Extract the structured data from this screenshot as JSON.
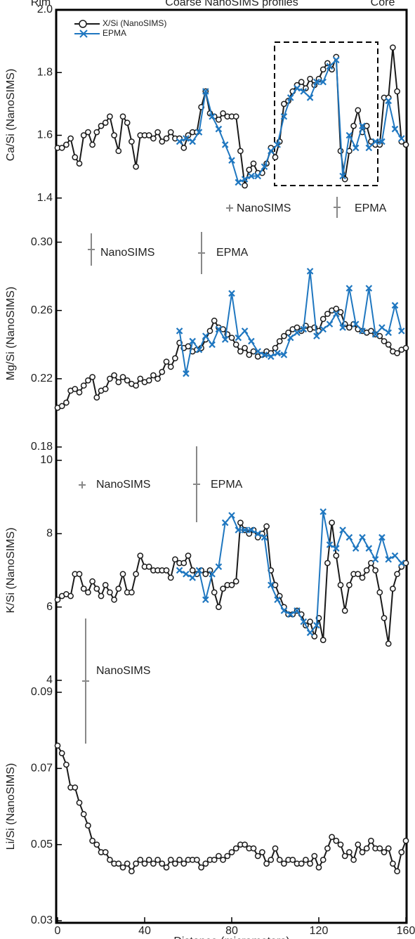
{
  "chart_data": [
    {
      "type": "line",
      "top_labels": [
        "Rim",
        "Coarse NanoSIMS profiles",
        "Core"
      ],
      "ylabel": "Ca/Si (NanoSIMS)",
      "xlim": [
        0,
        160
      ],
      "ylim": [
        1.33,
        2.0
      ],
      "yticks": [
        1.4,
        1.6,
        1.8,
        {
          "value": 2,
          "label": "2.0"
        }
      ],
      "legend": "upper left",
      "annotations": [
        "NanoSIMS",
        "EPMA"
      ],
      "series": [
        {
          "name": "X/Si (NanoSIMS)",
          "color": "#1a1a1a",
          "marker": "o",
          "x": [
            0,
            2,
            4,
            6,
            8,
            10,
            12,
            14,
            16,
            18,
            20,
            22,
            24,
            26,
            28,
            30,
            32,
            34,
            36,
            38,
            40,
            42,
            44,
            46,
            48,
            50,
            52,
            54,
            56,
            58,
            60,
            62,
            64,
            66,
            68,
            70,
            72,
            74,
            76,
            78,
            80,
            82,
            84,
            86,
            88,
            90,
            92,
            94,
            96,
            98,
            100,
            102,
            104,
            106,
            108,
            110,
            112,
            114,
            116,
            118,
            120,
            122,
            124,
            126,
            128,
            130,
            132,
            134,
            136,
            138,
            140,
            142,
            144,
            146,
            148,
            150,
            152,
            154,
            156,
            158,
            160
          ],
          "values": [
            1.56,
            1.56,
            1.57,
            1.59,
            1.53,
            1.51,
            1.6,
            1.61,
            1.57,
            1.61,
            1.63,
            1.64,
            1.66,
            1.6,
            1.55,
            1.66,
            1.64,
            1.58,
            1.5,
            1.6,
            1.6,
            1.6,
            1.59,
            1.61,
            1.58,
            1.59,
            1.61,
            1.59,
            1.59,
            1.56,
            1.6,
            1.61,
            1.61,
            1.69,
            1.74,
            1.67,
            1.66,
            1.65,
            1.67,
            1.66,
            1.66,
            1.66,
            1.55,
            1.44,
            1.49,
            1.51,
            1.48,
            1.48,
            1.51,
            1.56,
            1.53,
            1.58,
            1.7,
            1.71,
            1.74,
            1.76,
            1.77,
            1.75,
            1.78,
            1.76,
            1.78,
            1.81,
            1.83,
            1.81,
            1.85,
            1.55,
            1.46,
            1.55,
            1.63,
            1.68,
            1.61,
            1.63,
            1.58,
            1.57,
            1.57,
            1.72,
            1.72,
            1.88,
            1.74,
            1.58,
            1.57
          ]
        },
        {
          "name": "EPMA",
          "color": "#1f77c0",
          "marker": "x",
          "x": [
            56,
            59,
            62,
            65,
            68,
            71,
            74,
            77,
            80,
            83,
            86,
            89,
            92,
            95,
            98,
            101,
            104,
            107,
            110,
            113,
            116,
            119,
            122,
            125,
            128,
            131,
            134,
            137,
            140,
            143,
            146,
            149,
            152,
            155,
            158
          ],
          "values": [
            1.58,
            1.59,
            1.58,
            1.61,
            1.74,
            1.66,
            1.62,
            1.57,
            1.52,
            1.45,
            1.46,
            1.47,
            1.47,
            1.5,
            1.55,
            1.57,
            1.66,
            1.72,
            1.75,
            1.74,
            1.72,
            1.77,
            1.77,
            1.82,
            1.84,
            1.47,
            1.6,
            1.56,
            1.63,
            1.56,
            1.58,
            1.58,
            1.71,
            1.62,
            1.59
          ]
        }
      ]
    },
    {
      "type": "line",
      "ylabel": "Mg/Si (NanoSIMS)",
      "xlim": [
        0,
        160
      ],
      "ylim": [
        0.18,
        0.313
      ],
      "yticks": [
        0.18,
        0.22,
        0.26,
        {
          "value": 0.3,
          "label": "0.30"
        }
      ],
      "annotations": [
        "NanoSIMS",
        "EPMA"
      ],
      "series": [
        {
          "color": "#1a1a1a",
          "marker": "o",
          "x": [
            0,
            2,
            4,
            6,
            8,
            10,
            12,
            14,
            16,
            18,
            20,
            22,
            24,
            26,
            28,
            30,
            32,
            34,
            36,
            38,
            40,
            42,
            44,
            46,
            48,
            50,
            52,
            54,
            56,
            58,
            60,
            62,
            64,
            66,
            68,
            70,
            72,
            74,
            76,
            78,
            80,
            82,
            84,
            86,
            88,
            90,
            92,
            94,
            96,
            98,
            100,
            102,
            104,
            106,
            108,
            110,
            112,
            114,
            116,
            118,
            120,
            122,
            124,
            126,
            128,
            130,
            132,
            134,
            136,
            138,
            140,
            142,
            144,
            146,
            148,
            150,
            152,
            154,
            156,
            158,
            160
          ],
          "values": [
            0.203,
            0.204,
            0.206,
            0.213,
            0.214,
            0.212,
            0.216,
            0.219,
            0.221,
            0.209,
            0.213,
            0.214,
            0.22,
            0.222,
            0.218,
            0.221,
            0.219,
            0.217,
            0.216,
            0.22,
            0.218,
            0.219,
            0.222,
            0.22,
            0.224,
            0.23,
            0.227,
            0.232,
            0.241,
            0.238,
            0.239,
            0.236,
            0.237,
            0.238,
            0.243,
            0.248,
            0.254,
            0.25,
            0.249,
            0.246,
            0.244,
            0.24,
            0.236,
            0.238,
            0.234,
            0.236,
            0.233,
            0.234,
            0.236,
            0.235,
            0.238,
            0.242,
            0.245,
            0.247,
            0.249,
            0.25,
            0.248,
            0.251,
            0.249,
            0.25,
            0.248,
            0.255,
            0.258,
            0.26,
            0.261,
            0.259,
            0.252,
            0.25,
            0.252,
            0.249,
            0.248,
            0.247,
            0.248,
            0.246,
            0.245,
            0.242,
            0.24,
            0.236,
            0.235,
            0.237,
            0.238
          ]
        },
        {
          "color": "#1f77c0",
          "marker": "x",
          "x": [
            56,
            59,
            62,
            65,
            68,
            71,
            74,
            77,
            80,
            83,
            86,
            89,
            92,
            95,
            98,
            101,
            104,
            107,
            110,
            113,
            116,
            119,
            122,
            125,
            128,
            131,
            134,
            137,
            140,
            143,
            146,
            149,
            152,
            155,
            158
          ],
          "values": [
            0.248,
            0.223,
            0.242,
            0.237,
            0.245,
            0.24,
            0.249,
            0.243,
            0.27,
            0.244,
            0.248,
            0.242,
            0.236,
            0.234,
            0.233,
            0.235,
            0.234,
            0.244,
            0.247,
            0.249,
            0.283,
            0.245,
            0.249,
            0.252,
            0.258,
            0.25,
            0.273,
            0.252,
            0.248,
            0.273,
            0.246,
            0.25,
            0.247,
            0.263,
            0.248
          ]
        }
      ]
    },
    {
      "type": "line",
      "ylabel": "K/Si (NanoSIMS)",
      "xlim": [
        0,
        160
      ],
      "ylim": [
        4,
        10
      ],
      "yticks": [
        4,
        6,
        8,
        10
      ],
      "annotations": [
        "NanoSIMS",
        "EPMA"
      ],
      "series": [
        {
          "color": "#1a1a1a",
          "marker": "o",
          "x": [
            0,
            2,
            4,
            6,
            8,
            10,
            12,
            14,
            16,
            18,
            20,
            22,
            24,
            26,
            28,
            30,
            32,
            34,
            36,
            38,
            40,
            42,
            44,
            46,
            48,
            50,
            52,
            54,
            56,
            58,
            60,
            62,
            64,
            66,
            68,
            70,
            72,
            74,
            76,
            78,
            80,
            82,
            84,
            86,
            88,
            90,
            92,
            94,
            96,
            98,
            100,
            102,
            104,
            106,
            108,
            110,
            112,
            114,
            116,
            118,
            120,
            122,
            124,
            126,
            128,
            130,
            132,
            134,
            136,
            138,
            140,
            142,
            144,
            146,
            148,
            150,
            152,
            154,
            156,
            158,
            160
          ],
          "values": [
            6.2,
            6.3,
            6.35,
            6.3,
            6.9,
            6.9,
            6.5,
            6.4,
            6.7,
            6.5,
            6.3,
            6.6,
            6.4,
            6.2,
            6.5,
            6.9,
            6.4,
            6.4,
            6.9,
            7.4,
            7.1,
            7.1,
            7.0,
            7.0,
            7.0,
            7.0,
            6.8,
            7.3,
            7.2,
            7.2,
            7.4,
            7.0,
            6.9,
            7.0,
            6.9,
            7.0,
            6.4,
            6.0,
            6.5,
            6.6,
            6.6,
            6.7,
            8.3,
            8.1,
            8.0,
            8.1,
            7.9,
            8.0,
            8.2,
            7.0,
            6.6,
            6.3,
            6.0,
            5.8,
            5.8,
            5.9,
            5.8,
            5.5,
            5.6,
            5.2,
            5.7,
            5.1,
            7.2,
            8.3,
            7.4,
            6.6,
            5.9,
            6.6,
            6.9,
            6.9,
            6.8,
            7.0,
            7.2,
            7.0,
            6.4,
            5.7,
            5.0,
            6.5,
            6.9,
            7.1,
            7.2
          ]
        },
        {
          "color": "#1f77c0",
          "marker": "x",
          "x": [
            56,
            59,
            62,
            65,
            68,
            71,
            74,
            77,
            80,
            83,
            86,
            89,
            92,
            95,
            98,
            101,
            104,
            107,
            110,
            113,
            116,
            119,
            122,
            125,
            128,
            131,
            134,
            137,
            140,
            143,
            146,
            149,
            152,
            155,
            158
          ],
          "values": [
            7.0,
            6.9,
            6.8,
            7.0,
            6.2,
            6.9,
            7.1,
            8.3,
            8.5,
            8.1,
            8.1,
            8.1,
            8.0,
            7.9,
            6.6,
            6.2,
            5.9,
            5.8,
            5.9,
            5.6,
            5.3,
            5.5,
            8.6,
            7.7,
            7.6,
            8.1,
            7.9,
            7.6,
            7.9,
            7.6,
            7.3,
            7.9,
            7.3,
            7.4,
            7.2
          ]
        }
      ]
    },
    {
      "type": "line",
      "ylabel": "Li/Si (NanoSIMS)",
      "xlabel": "Distance (micrometers)",
      "xlim": [
        0,
        160
      ],
      "xticks": [
        0,
        40,
        80,
        120,
        160
      ],
      "ylim": [
        0.03,
        0.09
      ],
      "yticks": [
        0.03,
        0.05,
        0.07,
        0.09
      ],
      "annotations": [
        "NanoSIMS"
      ],
      "series": [
        {
          "color": "#1a1a1a",
          "marker": "o",
          "x": [
            0,
            2,
            4,
            6,
            8,
            10,
            12,
            14,
            16,
            18,
            20,
            22,
            24,
            26,
            28,
            30,
            32,
            34,
            36,
            38,
            40,
            42,
            44,
            46,
            48,
            50,
            52,
            54,
            56,
            58,
            60,
            62,
            64,
            66,
            68,
            70,
            72,
            74,
            76,
            78,
            80,
            82,
            84,
            86,
            88,
            90,
            92,
            94,
            96,
            98,
            100,
            102,
            104,
            106,
            108,
            110,
            112,
            114,
            116,
            118,
            120,
            122,
            124,
            126,
            128,
            130,
            132,
            134,
            136,
            138,
            140,
            142,
            144,
            146,
            148,
            150,
            152,
            154,
            156,
            158,
            160
          ],
          "values": [
            0.076,
            0.074,
            0.071,
            0.065,
            0.065,
            0.061,
            0.058,
            0.055,
            0.051,
            0.05,
            0.048,
            0.048,
            0.046,
            0.045,
            0.045,
            0.044,
            0.045,
            0.043,
            0.045,
            0.046,
            0.045,
            0.046,
            0.045,
            0.046,
            0.045,
            0.044,
            0.046,
            0.045,
            0.046,
            0.045,
            0.046,
            0.046,
            0.046,
            0.044,
            0.045,
            0.046,
            0.046,
            0.047,
            0.046,
            0.047,
            0.048,
            0.049,
            0.05,
            0.05,
            0.049,
            0.049,
            0.047,
            0.048,
            0.045,
            0.046,
            0.049,
            0.046,
            0.045,
            0.046,
            0.046,
            0.045,
            0.045,
            0.046,
            0.045,
            0.047,
            0.044,
            0.046,
            0.049,
            0.052,
            0.051,
            0.05,
            0.047,
            0.048,
            0.046,
            0.05,
            0.048,
            0.049,
            0.051,
            0.049,
            0.049,
            0.048,
            0.049,
            0.045,
            0.043,
            0.048,
            0.051
          ]
        }
      ]
    }
  ]
}
